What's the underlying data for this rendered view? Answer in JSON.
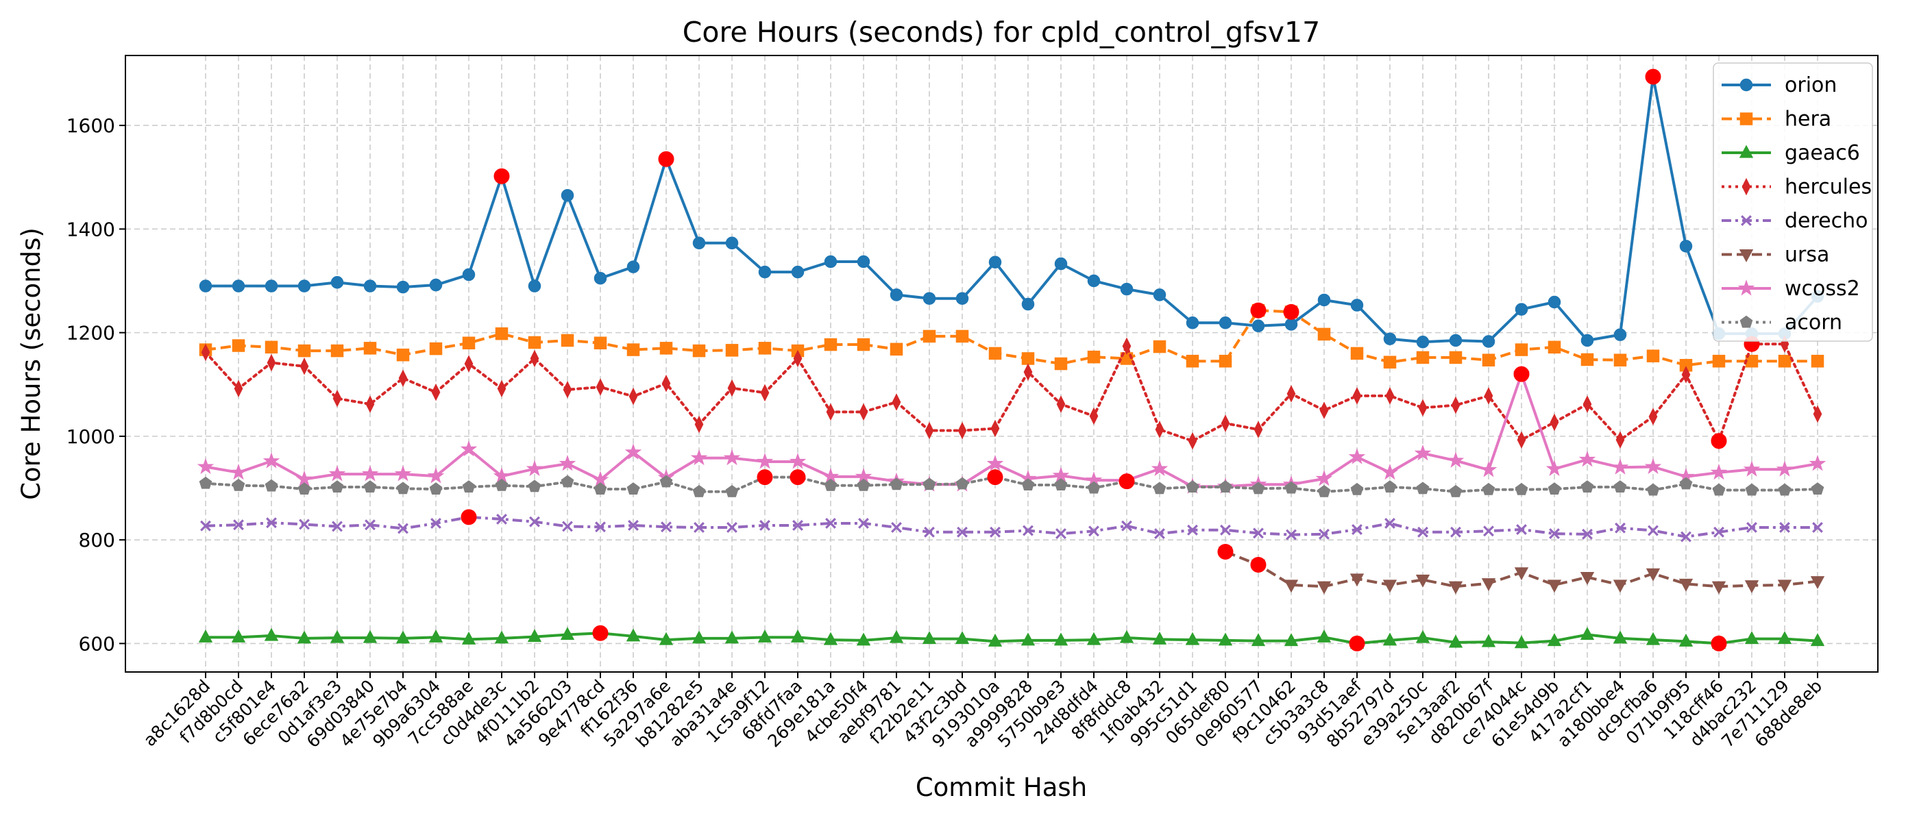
{
  "chart_data": {
    "type": "line",
    "title": "Core Hours (seconds) for cpld_control_gfsv17",
    "xlabel": "Commit Hash",
    "ylabel": "Core Hours (seconds)",
    "ylim": [
      545,
      1735
    ],
    "yticks": [
      600,
      800,
      1000,
      1200,
      1400,
      1600
    ],
    "grid": true,
    "legend_position": "top-right",
    "categories": [
      "a8c1628d",
      "f7d8b0cd",
      "c5f801e4",
      "6ece76a2",
      "0d1af3e3",
      "69d03840",
      "4e75e7b4",
      "9b9a6304",
      "7cc588ae",
      "c0d4de3c",
      "4f0111b2",
      "4a566203",
      "9e4778cd",
      "ff162f36",
      "5a297a6e",
      "b81282e5",
      "aba31a4e",
      "1c5a9f12",
      "68fd7faa",
      "269e181a",
      "4cbe50f4",
      "aebf9781",
      "f22b2e11",
      "43f2c3bd",
      "9193010a",
      "a9999828",
      "5750b9e3",
      "24d8dfd4",
      "8f8fddc8",
      "1f0ab432",
      "995c51d1",
      "065def80",
      "0e960577",
      "f9c10462",
      "c5b3a3c8",
      "93d51aef",
      "8b52797d",
      "e39a250c",
      "5e13aaf2",
      "d820b67f",
      "ce74044c",
      "61e54d9b",
      "417a2cf1",
      "a180bbe4",
      "dc9cfba6",
      "071b9f95",
      "118cff46",
      "d4bac232",
      "7e711129",
      "688de8eb"
    ],
    "series": [
      {
        "name": "orion",
        "color": "#1f77b4",
        "dash": "solid",
        "marker": "circle",
        "values": [
          1290,
          1290,
          1290,
          1290,
          1297,
          1290,
          1288,
          1292,
          1312,
          1502,
          1290,
          1465,
          1305,
          1327,
          1535,
          1373,
          1373,
          1317,
          1317,
          1337,
          1337,
          1273,
          1266,
          1266,
          1336,
          1255,
          1333,
          1300,
          1284,
          1273,
          1219,
          1219,
          1213,
          1216,
          1263,
          1253,
          1188,
          1182,
          1185,
          1183,
          1245,
          1259,
          1185,
          1196,
          1694,
          1367,
          1198,
          1198,
          1198,
          1270
        ]
      },
      {
        "name": "hera",
        "color": "#ff7f0e",
        "dash": "dashed",
        "marker": "square",
        "values": [
          1167,
          1175,
          1172,
          1165,
          1165,
          1170,
          1157,
          1169,
          1180,
          1198,
          1181,
          1185,
          1180,
          1167,
          1170,
          1165,
          1166,
          1170,
          1165,
          1177,
          1177,
          1168,
          1193,
          1193,
          1160,
          1150,
          1140,
          1153,
          1150,
          1173,
          1145,
          1145,
          1243,
          1240,
          1197,
          1160,
          1143,
          1152,
          1152,
          1147,
          1167,
          1172,
          1148,
          1147,
          1155,
          1137,
          1145,
          1145,
          1145,
          1145
        ]
      },
      {
        "name": "gaeac6",
        "color": "#2ca02c",
        "dash": "solid",
        "marker": "triangle-up",
        "values": [
          612,
          612,
          615,
          610,
          611,
          611,
          610,
          612,
          608,
          610,
          613,
          617,
          620,
          614,
          607,
          610,
          610,
          612,
          612,
          607,
          606,
          611,
          609,
          609,
          604,
          606,
          606,
          607,
          611,
          608,
          607,
          606,
          605,
          605,
          612,
          600,
          606,
          611,
          602,
          603,
          601,
          605,
          617,
          610,
          607,
          604,
          600,
          609,
          609,
          605
        ]
      },
      {
        "name": "hercules",
        "color": "#d62728",
        "dash": "dotted",
        "marker": "thin-diamond",
        "values": [
          1162,
          1092,
          1142,
          1135,
          1073,
          1062,
          1112,
          1085,
          1140,
          1092,
          1150,
          1090,
          1095,
          1077,
          1102,
          1023,
          1093,
          1084,
          1150,
          1047,
          1047,
          1066,
          1011,
          1011,
          1015,
          1124,
          1062,
          1039,
          1174,
          1013,
          991,
          1025,
          1013,
          1082,
          1050,
          1078,
          1078,
          1055,
          1060,
          1078,
          993,
          1027,
          1062,
          993,
          1038,
          1119,
          991,
          1178,
          1178,
          1043
        ]
      },
      {
        "name": "derecho",
        "color": "#9467bd",
        "dash": "dashdot",
        "marker": "x",
        "values": [
          827,
          829,
          833,
          830,
          826,
          829,
          822,
          832,
          844,
          840,
          835,
          826,
          825,
          828,
          825,
          824,
          824,
          828,
          828,
          832,
          832,
          824,
          815,
          815,
          815,
          818,
          812,
          817,
          827,
          812,
          819,
          819,
          813,
          810,
          811,
          820,
          832,
          815,
          815,
          817,
          820,
          812,
          811,
          823,
          818,
          806,
          815,
          824,
          824,
          824
        ]
      },
      {
        "name": "ursa",
        "color": "#8c564b",
        "dash": "dashed",
        "marker": "triangle-down",
        "values": [
          null,
          null,
          null,
          null,
          null,
          null,
          null,
          null,
          null,
          null,
          null,
          null,
          null,
          null,
          null,
          null,
          null,
          null,
          null,
          null,
          null,
          null,
          null,
          null,
          null,
          null,
          null,
          null,
          null,
          null,
          null,
          777,
          752,
          713,
          710,
          725,
          713,
          723,
          710,
          716,
          737,
          713,
          728,
          713,
          735,
          715,
          710,
          712,
          713,
          720
        ]
      },
      {
        "name": "wcoss2",
        "color": "#e377c2",
        "dash": "solid",
        "marker": "star",
        "values": [
          941,
          930,
          952,
          917,
          927,
          927,
          927,
          923,
          975,
          923,
          937,
          947,
          916,
          969,
          920,
          958,
          958,
          951,
          951,
          922,
          922,
          913,
          907,
          907,
          947,
          918,
          924,
          915,
          915,
          937,
          903,
          903,
          907,
          907,
          918,
          960,
          930,
          967,
          953,
          935,
          1120,
          937,
          955,
          940,
          941,
          922,
          930,
          936,
          936,
          947
        ]
      },
      {
        "name": "acorn",
        "color": "#7f7f7f",
        "dash": "dotted",
        "marker": "pentagon",
        "values": [
          909,
          905,
          904,
          898,
          902,
          902,
          899,
          898,
          902,
          905,
          903,
          912,
          898,
          898,
          912,
          893,
          893,
          921,
          921,
          905,
          905,
          907,
          907,
          908,
          921,
          906,
          906,
          900,
          913,
          899,
          902,
          902,
          899,
          900,
          893,
          897,
          902,
          899,
          893,
          897,
          897,
          898,
          902,
          902,
          896,
          908,
          896,
          896,
          896,
          898
        ]
      }
    ],
    "highlights": {
      "color": "#ff0000",
      "points": [
        [
          "orion",
          9
        ],
        [
          "orion",
          14
        ],
        [
          "orion",
          44
        ],
        [
          "hera",
          32
        ],
        [
          "hera",
          33
        ],
        [
          "gaeac6",
          12
        ],
        [
          "gaeac6",
          35
        ],
        [
          "gaeac6",
          46
        ],
        [
          "hercules",
          46
        ],
        [
          "hercules",
          47
        ],
        [
          "derecho",
          8
        ],
        [
          "ursa",
          31
        ],
        [
          "ursa",
          32
        ],
        [
          "wcoss2",
          40
        ],
        [
          "acorn",
          17
        ],
        [
          "acorn",
          18
        ],
        [
          "acorn",
          24
        ],
        [
          "acorn",
          28
        ]
      ]
    }
  }
}
